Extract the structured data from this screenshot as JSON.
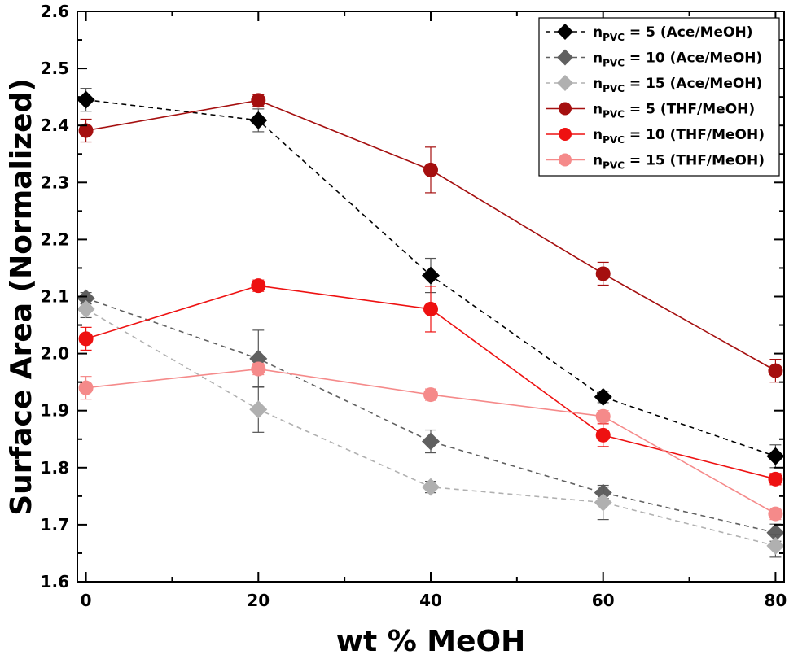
{
  "chart_data": {
    "type": "line",
    "xlabel": "wt % MeOH",
    "ylabel": "Surface Area (Normalized)",
    "xlim": [
      -1,
      81
    ],
    "ylim": [
      1.6,
      2.6
    ],
    "x": [
      0,
      20,
      40,
      60,
      80
    ],
    "x_ticks": [
      "0",
      "20",
      "40",
      "60",
      "80"
    ],
    "y_ticks": [
      "1.6",
      "1.7",
      "1.8",
      "1.9",
      "2.0",
      "2.1",
      "2.2",
      "2.3",
      "2.4",
      "2.5",
      "2.6"
    ],
    "grid": false,
    "legend_position": "top-right",
    "series": [
      {
        "name": "n_PVC = 5 (Ace/MeOH)",
        "label_main": "n",
        "label_sub": "PVC",
        "label_rest": " = 5 (Ace/MeOH)",
        "marker": "diamond",
        "line": "dashed",
        "color": "#000000",
        "values": [
          2.445,
          2.409,
          2.137,
          1.924,
          1.82
        ],
        "errors": [
          0.02,
          0.02,
          0.03,
          0.01,
          0.02
        ]
      },
      {
        "name": "n_PVC = 10 (Ace/MeOH)",
        "label_main": "n",
        "label_sub": "PVC",
        "label_rest": " = 10 (Ace/MeOH)",
        "marker": "diamond",
        "line": "dashed",
        "color": "#606060",
        "values": [
          2.097,
          1.991,
          1.846,
          1.756,
          1.686
        ],
        "errors": [
          0.01,
          0.05,
          0.02,
          0.01,
          0.015
        ]
      },
      {
        "name": "n_PVC = 15 (Ace/MeOH)",
        "label_main": "n",
        "label_sub": "PVC",
        "label_rest": " = 15 (Ace/MeOH)",
        "marker": "diamond",
        "line": "dashed",
        "color": "#b0b0b0",
        "values": [
          2.078,
          1.902,
          1.766,
          1.739,
          1.663
        ],
        "errors": [
          0.015,
          0.04,
          0.01,
          0.03,
          0.02
        ]
      },
      {
        "name": "n_PVC = 5 (THF/MeOH)",
        "label_main": "n",
        "label_sub": "PVC",
        "label_rest": " = 5 (THF/MeOH)",
        "marker": "circle",
        "line": "solid",
        "color": "#a50f0f",
        "values": [
          2.391,
          2.444,
          2.322,
          2.14,
          1.97
        ],
        "errors": [
          0.02,
          0.01,
          0.04,
          0.02,
          0.02
        ]
      },
      {
        "name": "n_PVC = 10 (THF/MeOH)",
        "label_main": "n",
        "label_sub": "PVC",
        "label_rest": " = 10 (THF/MeOH)",
        "marker": "circle",
        "line": "solid",
        "color": "#ee1111",
        "values": [
          2.026,
          2.119,
          2.078,
          1.857,
          1.78
        ],
        "errors": [
          0.02,
          0.01,
          0.04,
          0.02,
          0.01
        ]
      },
      {
        "name": "n_PVC = 15 (THF/MeOH)",
        "label_main": "n",
        "label_sub": "PVC",
        "label_rest": " = 15 (THF/MeOH)",
        "marker": "circle",
        "line": "solid",
        "color": "#f58a8a",
        "values": [
          1.94,
          1.973,
          1.928,
          1.89,
          1.719
        ],
        "errors": [
          0.02,
          0.01,
          0.01,
          0.01,
          0.01
        ]
      }
    ]
  }
}
